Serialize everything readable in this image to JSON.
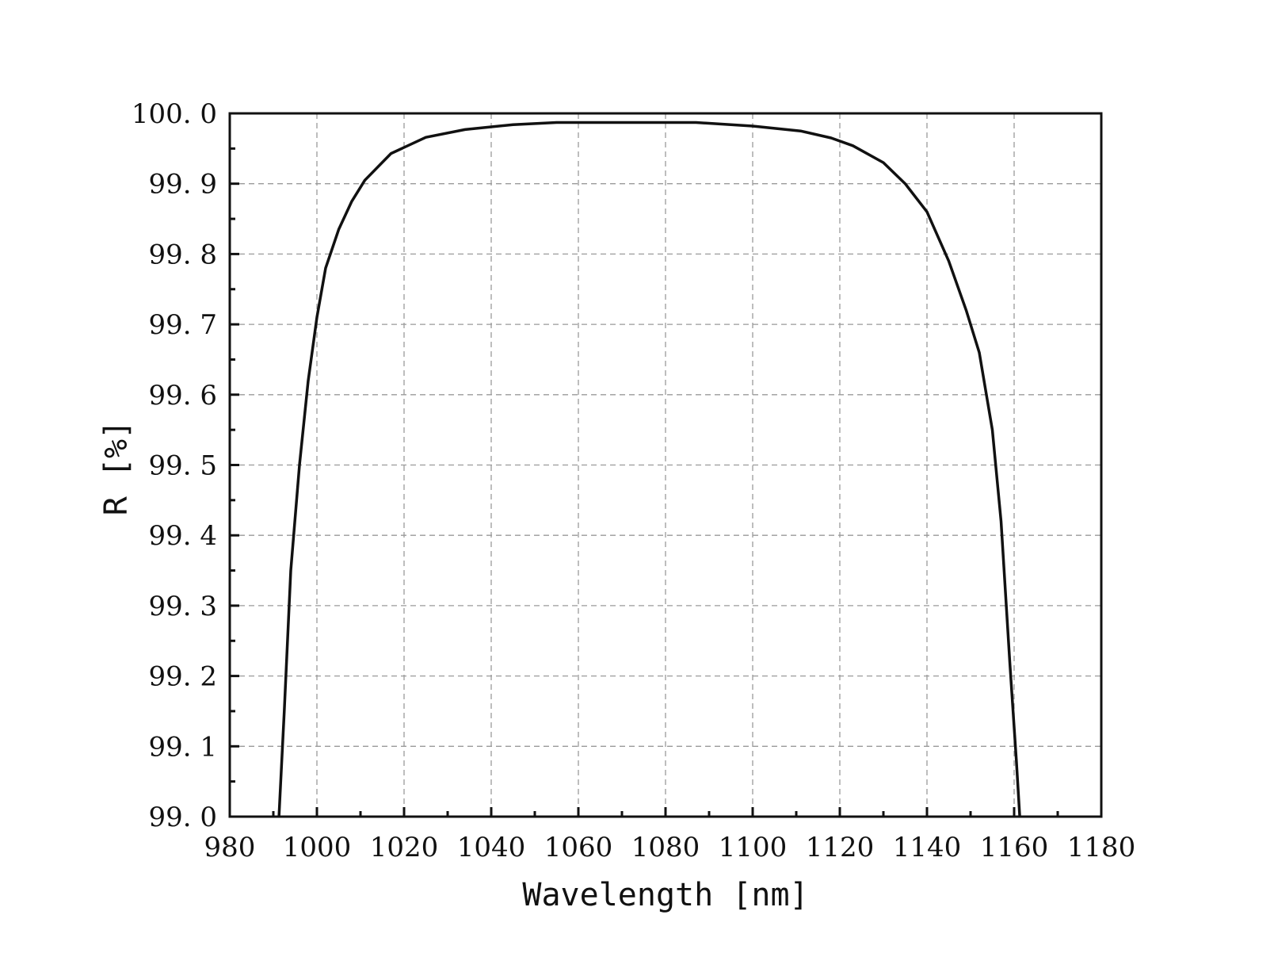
{
  "chart_data": {
    "type": "line",
    "title": "",
    "xlabel": "Wavelength [nm]",
    "ylabel": "R [%]",
    "xlim": [
      980,
      1180
    ],
    "ylim": [
      99.0,
      100.0
    ],
    "x_ticks": [
      980,
      1000,
      1020,
      1040,
      1060,
      1080,
      1100,
      1120,
      1140,
      1160,
      1180
    ],
    "x_tick_labels": [
      "980",
      "1000",
      "1020",
      "1040",
      "1060",
      "1080",
      "1100",
      "1120",
      "1140",
      "1160",
      "1180"
    ],
    "y_ticks": [
      99.0,
      99.1,
      99.2,
      99.3,
      99.4,
      99.5,
      99.6,
      99.7,
      99.8,
      99.9,
      100.0
    ],
    "y_tick_labels": [
      "99. 0",
      "99. 1",
      "99. 2",
      "99. 3",
      "99. 4",
      "99. 5",
      "99. 6",
      "99. 7",
      "99. 8",
      "99. 9",
      "100. 0"
    ],
    "grid": true,
    "legend": "none",
    "series": [
      {
        "color": "#111111",
        "x": [
          991.3,
          992.5,
          994,
          996,
          998,
          1000,
          1002,
          1005,
          1008,
          1011,
          1017,
          1025,
          1034,
          1045,
          1055,
          1065,
          1075,
          1087,
          1100,
          1111,
          1118,
          1123,
          1130,
          1135,
          1140,
          1145,
          1149,
          1152,
          1155,
          1157,
          1159,
          1160.5,
          1161.3
        ],
        "y": [
          99.0,
          99.15,
          99.35,
          99.5,
          99.62,
          99.71,
          99.78,
          99.835,
          99.875,
          99.905,
          99.943,
          99.966,
          99.977,
          99.984,
          99.987,
          99.987,
          99.987,
          99.987,
          99.982,
          99.975,
          99.965,
          99.954,
          99.93,
          99.9,
          99.86,
          99.79,
          99.72,
          99.66,
          99.55,
          99.42,
          99.22,
          99.08,
          99.0
        ]
      }
    ]
  }
}
